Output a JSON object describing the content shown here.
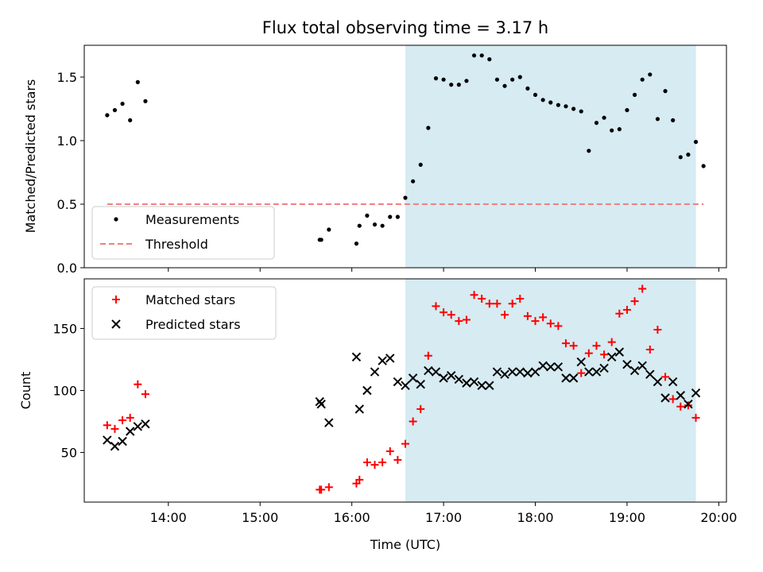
{
  "chart_data": {
    "type": "scatter",
    "title": "Flux total observing time = 3.17 h",
    "xlabel": "Time (UTC)",
    "x_ticks": [
      "14:00",
      "15:00",
      "16:00",
      "17:00",
      "18:00",
      "19:00",
      "20:00"
    ],
    "x_range": [
      "13:05",
      "20:05"
    ],
    "highlight_band": {
      "from": "16:35",
      "to": "19:45",
      "color": "#add8e6"
    },
    "panels": [
      {
        "ylabel": "Matched/Predicted stars",
        "ylim": [
          0.0,
          1.75
        ],
        "y_ticks": [
          "0.0",
          "0.5",
          "1.0",
          "1.5"
        ],
        "legend_position": "lower-left",
        "series": [
          {
            "name": "Measurements",
            "marker": "dot",
            "color": "#000000",
            "points": [
              [
                "13:20",
                1.2
              ],
              [
                "13:25",
                1.24
              ],
              [
                "13:30",
                1.29
              ],
              [
                "13:35",
                1.16
              ],
              [
                "13:40",
                1.46
              ],
              [
                "13:45",
                1.31
              ],
              [
                "15:39",
                0.22
              ],
              [
                "15:40",
                0.22
              ],
              [
                "15:45",
                0.3
              ],
              [
                "16:03",
                0.19
              ],
              [
                "16:05",
                0.33
              ],
              [
                "16:10",
                0.41
              ],
              [
                "16:15",
                0.34
              ],
              [
                "16:20",
                0.33
              ],
              [
                "16:25",
                0.4
              ],
              [
                "16:30",
                0.4
              ],
              [
                "16:35",
                0.55
              ],
              [
                "16:40",
                0.68
              ],
              [
                "16:45",
                0.81
              ],
              [
                "16:50",
                1.1
              ],
              [
                "16:55",
                1.49
              ],
              [
                "17:00",
                1.48
              ],
              [
                "17:05",
                1.44
              ],
              [
                "17:10",
                1.44
              ],
              [
                "17:15",
                1.47
              ],
              [
                "17:20",
                1.67
              ],
              [
                "17:25",
                1.67
              ],
              [
                "17:30",
                1.64
              ],
              [
                "17:35",
                1.48
              ],
              [
                "17:40",
                1.43
              ],
              [
                "17:45",
                1.48
              ],
              [
                "17:50",
                1.5
              ],
              [
                "17:55",
                1.41
              ],
              [
                "18:00",
                1.36
              ],
              [
                "18:05",
                1.32
              ],
              [
                "18:10",
                1.3
              ],
              [
                "18:15",
                1.28
              ],
              [
                "18:20",
                1.27
              ],
              [
                "18:25",
                1.25
              ],
              [
                "18:30",
                1.23
              ],
              [
                "18:35",
                0.92
              ],
              [
                "18:40",
                1.14
              ],
              [
                "18:45",
                1.18
              ],
              [
                "18:50",
                1.08
              ],
              [
                "18:55",
                1.09
              ],
              [
                "19:00",
                1.24
              ],
              [
                "19:05",
                1.36
              ],
              [
                "19:10",
                1.48
              ],
              [
                "19:15",
                1.52
              ],
              [
                "19:20",
                1.17
              ],
              [
                "19:25",
                1.39
              ],
              [
                "19:30",
                1.16
              ],
              [
                "19:35",
                0.87
              ],
              [
                "19:40",
                0.89
              ],
              [
                "19:45",
                0.99
              ],
              [
                "19:50",
                0.8
              ]
            ]
          },
          {
            "name": "Threshold",
            "marker": "dashed-line",
            "color": "#f08080",
            "points": [
              [
                "13:20",
                0.5
              ],
              [
                "19:50",
                0.5
              ]
            ]
          }
        ]
      },
      {
        "ylabel": "Count",
        "ylim": [
          10,
          190
        ],
        "y_ticks": [
          "50",
          "100",
          "150"
        ],
        "legend_position": "upper-left",
        "series": [
          {
            "name": "Matched stars",
            "marker": "plus",
            "color": "#ff0000",
            "points": [
              [
                "13:20",
                72
              ],
              [
                "13:25",
                69
              ],
              [
                "13:30",
                76
              ],
              [
                "13:35",
                78
              ],
              [
                "13:40",
                105
              ],
              [
                "13:45",
                97
              ],
              [
                "15:39",
                20
              ],
              [
                "15:40",
                20
              ],
              [
                "15:45",
                22
              ],
              [
                "16:03",
                25
              ],
              [
                "16:05",
                28
              ],
              [
                "16:10",
                42
              ],
              [
                "16:15",
                40
              ],
              [
                "16:20",
                42
              ],
              [
                "16:25",
                51
              ],
              [
                "16:30",
                44
              ],
              [
                "16:35",
                57
              ],
              [
                "16:40",
                75
              ],
              [
                "16:45",
                85
              ],
              [
                "16:50",
                128
              ],
              [
                "16:55",
                168
              ],
              [
                "17:00",
                163
              ],
              [
                "17:05",
                161
              ],
              [
                "17:10",
                156
              ],
              [
                "17:15",
                157
              ],
              [
                "17:20",
                177
              ],
              [
                "17:25",
                174
              ],
              [
                "17:30",
                170
              ],
              [
                "17:35",
                170
              ],
              [
                "17:40",
                161
              ],
              [
                "17:45",
                170
              ],
              [
                "17:50",
                174
              ],
              [
                "17:55",
                160
              ],
              [
                "18:00",
                156
              ],
              [
                "18:05",
                159
              ],
              [
                "18:10",
                154
              ],
              [
                "18:15",
                152
              ],
              [
                "18:20",
                138
              ],
              [
                "18:25",
                136
              ],
              [
                "18:30",
                114
              ],
              [
                "18:35",
                130
              ],
              [
                "18:40",
                136
              ],
              [
                "18:45",
                129
              ],
              [
                "18:50",
                139
              ],
              [
                "18:55",
                162
              ],
              [
                "19:00",
                165
              ],
              [
                "19:05",
                172
              ],
              [
                "19:10",
                182
              ],
              [
                "19:15",
                133
              ],
              [
                "19:20",
                149
              ],
              [
                "19:25",
                111
              ],
              [
                "19:30",
                93
              ],
              [
                "19:35",
                87
              ],
              [
                "19:40",
                88
              ],
              [
                "19:45",
                78
              ]
            ]
          },
          {
            "name": "Predicted stars",
            "marker": "x",
            "color": "#000000",
            "points": [
              [
                "13:20",
                60
              ],
              [
                "13:25",
                55
              ],
              [
                "13:30",
                59
              ],
              [
                "13:35",
                67
              ],
              [
                "13:40",
                71
              ],
              [
                "13:45",
                73
              ],
              [
                "15:39",
                91
              ],
              [
                "15:40",
                89
              ],
              [
                "15:45",
                74
              ],
              [
                "16:03",
                127
              ],
              [
                "16:05",
                85
              ],
              [
                "16:10",
                100
              ],
              [
                "16:15",
                115
              ],
              [
                "16:20",
                124
              ],
              [
                "16:25",
                126
              ],
              [
                "16:30",
                107
              ],
              [
                "16:35",
                104
              ],
              [
                "16:40",
                110
              ],
              [
                "16:45",
                105
              ],
              [
                "16:50",
                116
              ],
              [
                "16:55",
                115
              ],
              [
                "17:00",
                110
              ],
              [
                "17:05",
                112
              ],
              [
                "17:10",
                109
              ],
              [
                "17:15",
                106
              ],
              [
                "17:20",
                107
              ],
              [
                "17:25",
                104
              ],
              [
                "17:30",
                104
              ],
              [
                "17:35",
                115
              ],
              [
                "17:40",
                113
              ],
              [
                "17:45",
                115
              ],
              [
                "17:50",
                115
              ],
              [
                "17:55",
                114
              ],
              [
                "18:00",
                115
              ],
              [
                "18:05",
                120
              ],
              [
                "18:10",
                119
              ],
              [
                "18:15",
                119
              ],
              [
                "18:20",
                110
              ],
              [
                "18:25",
                110
              ],
              [
                "18:30",
                123
              ],
              [
                "18:35",
                115
              ],
              [
                "18:40",
                115
              ],
              [
                "18:45",
                118
              ],
              [
                "18:50",
                127
              ],
              [
                "18:55",
                131
              ],
              [
                "19:00",
                121
              ],
              [
                "19:05",
                116
              ],
              [
                "19:10",
                120
              ],
              [
                "19:15",
                113
              ],
              [
                "19:20",
                107
              ],
              [
                "19:25",
                94
              ],
              [
                "19:30",
                107
              ],
              [
                "19:35",
                96
              ],
              [
                "19:40",
                89
              ],
              [
                "19:45",
                98
              ]
            ]
          }
        ]
      }
    ]
  }
}
